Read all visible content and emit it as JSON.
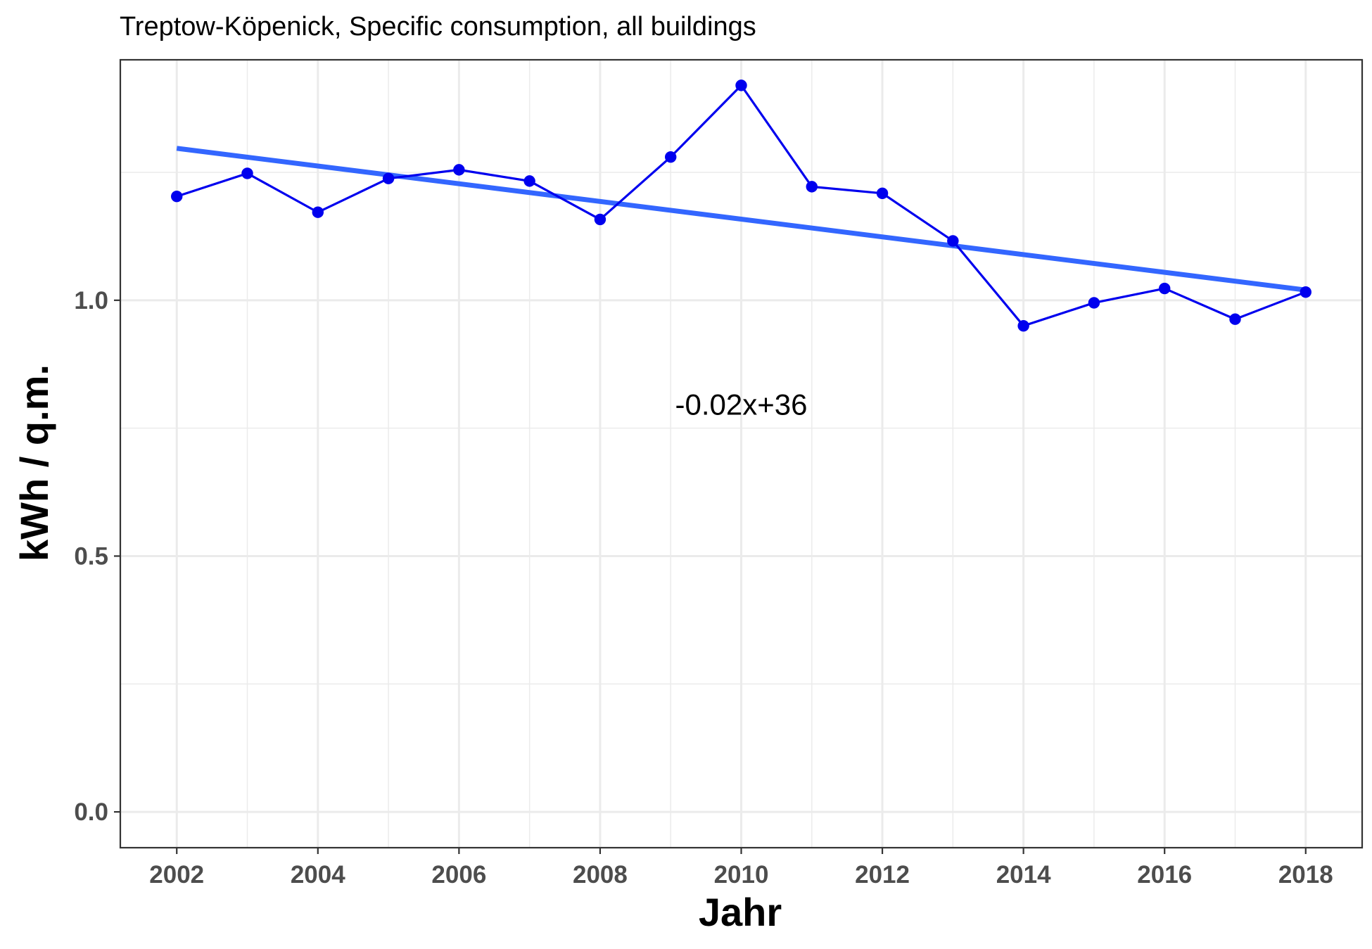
{
  "chart_data": {
    "type": "line",
    "title": "Treptow-Köpenick, Specific consumption, all buildings",
    "xlabel": "Jahr",
    "ylabel": "kWh / q.m.",
    "xlim": [
      2001.2,
      2018.8
    ],
    "ylim": [
      -0.07,
      1.47
    ],
    "x_ticks": [
      2002,
      2004,
      2006,
      2008,
      2010,
      2012,
      2014,
      2016,
      2018
    ],
    "x_tick_labels": [
      "2002",
      "2004",
      "2006",
      "2008",
      "2010",
      "2012",
      "2014",
      "2016",
      "2018"
    ],
    "y_ticks": [
      0.0,
      0.5,
      1.0
    ],
    "y_tick_labels": [
      "0.0",
      "0.5",
      "1.0"
    ],
    "grid": true,
    "series": [
      {
        "color": "#0000ee",
        "x": [
          2002,
          2003,
          2004,
          2005,
          2006,
          2007,
          2008,
          2009,
          2010,
          2011,
          2012,
          2013,
          2014,
          2015,
          2016,
          2017,
          2018
        ],
        "y": [
          1.203,
          1.248,
          1.172,
          1.238,
          1.255,
          1.233,
          1.158,
          1.28,
          1.42,
          1.222,
          1.209,
          1.116,
          0.95,
          0.995,
          1.023,
          0.963,
          1.016
        ]
      }
    ],
    "trend_line": {
      "color": "#3366ff",
      "x": [
        2002,
        2018
      ],
      "y": [
        1.297,
        1.02
      ]
    },
    "annotation": {
      "text": "-0.02x+36",
      "x": 2010,
      "y": 0.797
    }
  }
}
